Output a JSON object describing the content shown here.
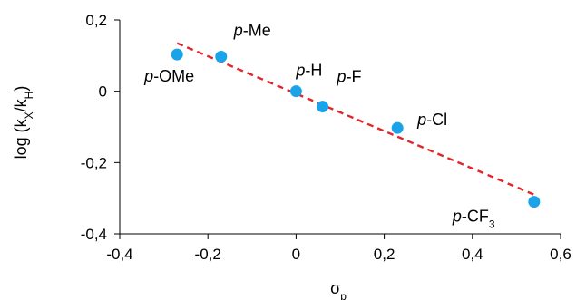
{
  "chart_data": {
    "type": "scatter",
    "title": "",
    "xlabel": {
      "base": "σ",
      "sub": "p"
    },
    "ylabel": {
      "parts": [
        {
          "t": "log (k",
          "sub": false
        },
        {
          "t": "X",
          "sub": true
        },
        {
          "t": "/k",
          "sub": false
        },
        {
          "t": "H",
          "sub": true
        },
        {
          "t": ")",
          "sub": false
        }
      ]
    },
    "xlim": [
      -0.4,
      0.6
    ],
    "ylim": [
      -0.4,
      0.2
    ],
    "xticks": [
      -0.4,
      -0.2,
      0,
      0.2,
      0.4,
      0.6
    ],
    "yticks": [
      -0.4,
      -0.2,
      0,
      0.2
    ],
    "xtick_labels": [
      "-0,4",
      "-0,2",
      "0",
      "0,2",
      "0,4",
      "0,6"
    ],
    "ytick_labels": [
      "-0,4",
      "-0,2",
      "0",
      "0,2"
    ],
    "grid": false,
    "point_color": "#1aa3e8",
    "trendline": {
      "color": "#e0262b",
      "style": "dashed",
      "from": [
        -0.27,
        0.135
      ],
      "to": [
        0.54,
        -0.29
      ]
    },
    "points": [
      {
        "x": -0.27,
        "y": 0.103,
        "label": [
          {
            "t": "p",
            "i": true
          },
          {
            "t": "-OMe"
          }
        ]
      },
      {
        "x": -0.17,
        "y": 0.097,
        "label": [
          {
            "t": "p",
            "i": true
          },
          {
            "t": "-Me"
          }
        ]
      },
      {
        "x": 0.0,
        "y": 0.0,
        "label": [
          {
            "t": "p",
            "i": true
          },
          {
            "t": "-H"
          }
        ]
      },
      {
        "x": 0.06,
        "y": -0.043,
        "label": [
          {
            "t": "p",
            "i": true
          },
          {
            "t": "-F"
          }
        ]
      },
      {
        "x": 0.23,
        "y": -0.103,
        "label": [
          {
            "t": "p",
            "i": true
          },
          {
            "t": "-Cl"
          }
        ]
      },
      {
        "x": 0.54,
        "y": -0.31,
        "label": [
          {
            "t": "p",
            "i": true
          },
          {
            "t": "-CF"
          },
          {
            "t": "3",
            "sub": true
          }
        ]
      }
    ]
  }
}
